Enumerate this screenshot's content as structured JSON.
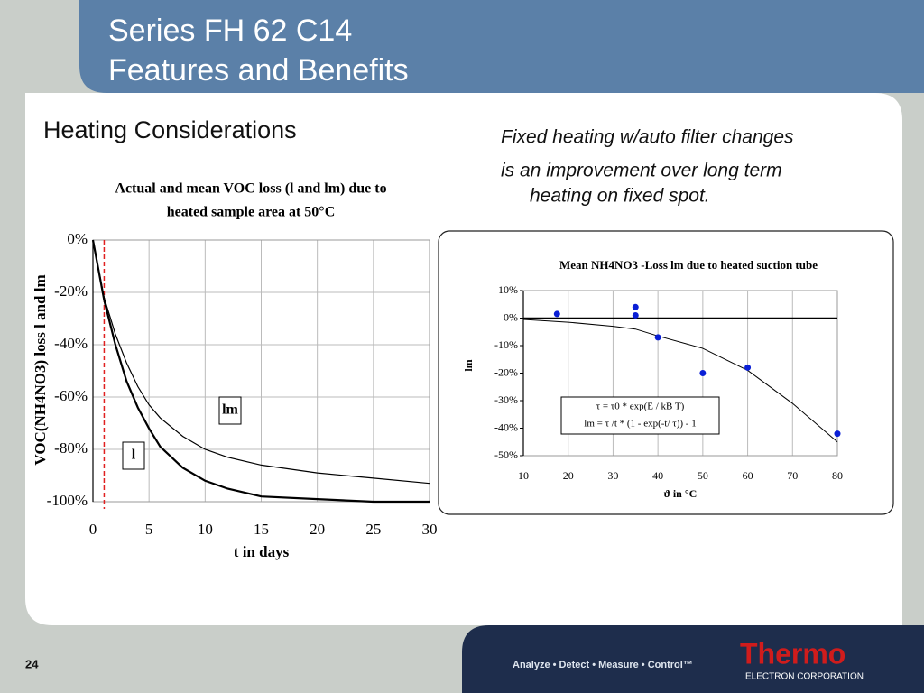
{
  "header": {
    "title": [
      "Series FH 62 C14",
      "Features and Benefits"
    ]
  },
  "heading": "Heating Considerations",
  "note": [
    "Fixed heating w/auto filter changes",
    "is an improvement over long term",
    "heating on fixed spot."
  ],
  "page_number": "24",
  "footer": {
    "tagline": "Analyze • Detect • Measure • Control™",
    "logo": "Thermo",
    "logo_sub": "ELECTRON CORPORATION"
  },
  "chart_data": [
    {
      "type": "line",
      "title": [
        "Actual and mean VOC loss (l and lm) due to",
        "heated sample area at 50°C"
      ],
      "x_label": "t in days",
      "y_label": "VOC(NH4NO3) loss l and lm",
      "x": [
        0,
        1,
        2,
        3,
        4,
        5,
        6,
        8,
        10,
        12,
        15,
        20,
        25,
        30
      ],
      "series": [
        {
          "name": "l",
          "color": "#000000",
          "values": [
            0,
            -23,
            -40,
            -54,
            -64,
            -72,
            -79,
            -87,
            -92,
            -95,
            -98,
            -99,
            -100,
            -100
          ]
        },
        {
          "name": "lm",
          "color": "#000000",
          "values": [
            0,
            -22,
            -36,
            -47,
            -56,
            -63,
            -68,
            -75,
            -80,
            -83,
            -86,
            -89,
            -91,
            -93
          ]
        }
      ],
      "xlim": [
        0,
        30
      ],
      "xticks": [
        0,
        5,
        10,
        15,
        20,
        25,
        30
      ],
      "ylim": [
        -100,
        0
      ],
      "yticks": [
        {
          "value": 0,
          "label": "0%"
        },
        {
          "value": -20,
          "label": "-20%"
        },
        {
          "value": -40,
          "label": "-40%"
        },
        {
          "value": -60,
          "label": "-60%"
        },
        {
          "value": -80,
          "label": "-80%"
        },
        {
          "value": -100,
          "label": "-100%"
        }
      ],
      "grid": true,
      "vline": 1,
      "vline_color": "#e02020"
    },
    {
      "type": "scatter",
      "title": [
        "Mean NH4NO3 -Loss lm due to heated suction tube"
      ],
      "x_label": "ϑ in °C",
      "y_label": "lm",
      "points": {
        "color": "#0a1fd6",
        "x": [
          17.5,
          35,
          35,
          40,
          50,
          60,
          80
        ],
        "values": [
          1.5,
          4,
          1,
          -7,
          -20,
          -18,
          -42
        ]
      },
      "fit": {
        "color": "#000000",
        "x": [
          10,
          20,
          30,
          35,
          40,
          50,
          60,
          70,
          80
        ],
        "values": [
          -0.5,
          -1.5,
          -3,
          -4,
          -6.5,
          -11,
          -19,
          -31,
          -45
        ]
      },
      "annotations": [
        "τ = τ0 * exp(E / kB T)",
        "lm = τ /t * (1 - exp(-t/ τ)) - 1"
      ],
      "xlim": [
        10,
        80
      ],
      "xticks": [
        10,
        20,
        30,
        40,
        50,
        60,
        70,
        80
      ],
      "ylim": [
        -50,
        10
      ],
      "yticks": [
        {
          "value": 10,
          "label": "10%"
        },
        {
          "value": 0,
          "label": "0%"
        },
        {
          "value": -10,
          "label": "-10%"
        },
        {
          "value": -20,
          "label": "-20%"
        },
        {
          "value": -30,
          "label": "-30%"
        },
        {
          "value": -40,
          "label": "-40%"
        },
        {
          "value": -50,
          "label": "-50%"
        }
      ],
      "grid": true
    }
  ]
}
